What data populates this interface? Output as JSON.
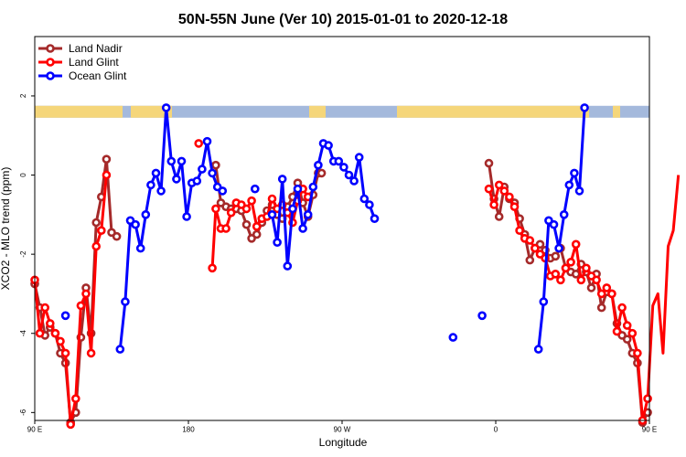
{
  "chart_data": {
    "type": "line",
    "title": "50N-55N June (Ver 10)   2015-01-01 to 2020-12-18",
    "xlabel": "Longitude",
    "ylabel": "XCO2 - MLO trend (ppm)",
    "xlim": [
      90,
      450
    ],
    "ylim": [
      -6.2,
      3.5
    ],
    "x_ticks": [
      {
        "value": 90,
        "label": "90 E"
      },
      {
        "value": 180,
        "label": "180"
      },
      {
        "value": 270,
        "label": "90 W"
      },
      {
        "value": 360,
        "label": "0"
      },
      {
        "value": 450,
        "label": "90 E"
      },
      {
        "value": 540,
        "label": "180"
      }
    ],
    "y_ticks": [
      -6,
      -4,
      -2,
      0,
      2
    ],
    "land_ocean_band": {
      "y_range": [
        1.45,
        1.75
      ],
      "land_color": "#f5d67a",
      "ocean_color": "#a4b9dc"
    },
    "legend": {
      "position": "top-left"
    },
    "series": [
      {
        "name": "Land Nadir",
        "color": "#a52a2a",
        "points": [
          [
            90,
            -2.75
          ],
          [
            93,
            -3.35
          ],
          [
            96,
            -4.05
          ],
          [
            99,
            -3.85
          ],
          [
            102,
            -4.0
          ],
          [
            105,
            -4.5
          ],
          [
            108,
            -4.75
          ],
          [
            111,
            -6.25
          ],
          [
            114,
            -6.0
          ],
          [
            117,
            -4.1
          ],
          [
            120,
            -2.85
          ],
          [
            123,
            -4.0
          ],
          [
            126,
            -1.2
          ],
          [
            129,
            -0.55
          ],
          [
            132,
            0.4
          ],
          [
            135,
            -1.45
          ],
          [
            138,
            -1.55
          ],
          [
            196,
            0.25
          ],
          [
            199,
            -0.7
          ],
          [
            202,
            -0.8
          ],
          [
            205,
            -0.85
          ],
          [
            208,
            -0.85
          ],
          [
            211,
            -0.9
          ],
          [
            214,
            -1.25
          ],
          [
            217,
            -1.6
          ],
          [
            220,
            -1.5
          ],
          [
            223,
            -1.2
          ],
          [
            226,
            -0.9
          ],
          [
            229,
            -0.75
          ],
          [
            232,
            -1.0
          ],
          [
            235,
            -1.1
          ],
          [
            238,
            -0.8
          ],
          [
            241,
            -0.55
          ],
          [
            244,
            -0.2
          ],
          [
            247,
            -0.7
          ],
          [
            250,
            -1.05
          ],
          [
            253,
            -0.5
          ],
          [
            256,
            0.05
          ],
          [
            258,
            0.05
          ],
          [
            356,
            0.3
          ],
          [
            359,
            -0.6
          ],
          [
            362,
            -1.05
          ],
          [
            365,
            -0.3
          ],
          [
            368,
            -0.6
          ],
          [
            371,
            -0.7
          ],
          [
            374,
            -1.1
          ],
          [
            377,
            -1.5
          ],
          [
            380,
            -2.15
          ],
          [
            383,
            -1.85
          ],
          [
            386,
            -1.75
          ],
          [
            389,
            -1.9
          ],
          [
            392,
            -2.1
          ],
          [
            395,
            -2.05
          ],
          [
            398,
            -1.85
          ],
          [
            401,
            -2.35
          ],
          [
            404,
            -2.45
          ],
          [
            407,
            -2.5
          ],
          [
            410,
            -2.25
          ],
          [
            413,
            -2.45
          ],
          [
            416,
            -2.85
          ],
          [
            419,
            -2.5
          ],
          [
            422,
            -3.35
          ],
          [
            425,
            -2.95
          ],
          [
            428,
            -3.0
          ],
          [
            431,
            -3.75
          ],
          [
            434,
            -4.05
          ],
          [
            437,
            -4.15
          ],
          [
            440,
            -4.5
          ],
          [
            443,
            -4.75
          ],
          [
            446,
            -6.25
          ],
          [
            449,
            -6.0
          ]
        ]
      },
      {
        "name": "Land Glint",
        "color": "#ff0000",
        "points": [
          [
            90,
            -2.65
          ],
          [
            93,
            -4.0
          ],
          [
            96,
            -3.35
          ],
          [
            99,
            -3.75
          ],
          [
            102,
            -4.0
          ],
          [
            105,
            -4.2
          ],
          [
            108,
            -4.5
          ],
          [
            111,
            -6.3
          ],
          [
            114,
            -5.65
          ],
          [
            117,
            -3.3
          ],
          [
            120,
            -3.0
          ],
          [
            123,
            -4.5
          ],
          [
            126,
            -1.8
          ],
          [
            129,
            -1.4
          ],
          [
            132,
            0.0
          ],
          [
            186,
            0.8
          ],
          [
            194,
            -2.35
          ],
          [
            196,
            -0.85
          ],
          [
            199,
            -1.35
          ],
          [
            202,
            -1.35
          ],
          [
            205,
            -0.95
          ],
          [
            208,
            -0.7
          ],
          [
            211,
            -0.75
          ],
          [
            214,
            -0.85
          ],
          [
            217,
            -0.65
          ],
          [
            220,
            -1.3
          ],
          [
            223,
            -1.1
          ],
          [
            226,
            -1.05
          ],
          [
            229,
            -0.6
          ],
          [
            232,
            -0.85
          ],
          [
            235,
            -0.75
          ],
          [
            238,
            -0.95
          ],
          [
            241,
            -1.2
          ],
          [
            244,
            -0.65
          ],
          [
            247,
            -0.35
          ],
          [
            250,
            -0.55
          ],
          [
            356,
            -0.35
          ],
          [
            359,
            -0.75
          ],
          [
            362,
            -0.25
          ],
          [
            365,
            -0.4
          ],
          [
            368,
            -0.55
          ],
          [
            371,
            -0.8
          ],
          [
            374,
            -1.4
          ],
          [
            377,
            -1.6
          ],
          [
            380,
            -1.65
          ],
          [
            383,
            -1.85
          ],
          [
            386,
            -2.0
          ],
          [
            389,
            -2.1
          ],
          [
            392,
            -2.55
          ],
          [
            395,
            -2.5
          ],
          [
            398,
            -2.65
          ],
          [
            401,
            -2.35
          ],
          [
            404,
            -2.2
          ],
          [
            407,
            -1.75
          ],
          [
            410,
            -2.65
          ],
          [
            413,
            -2.35
          ],
          [
            416,
            -2.55
          ],
          [
            419,
            -2.65
          ],
          [
            422,
            -3.0
          ],
          [
            425,
            -2.85
          ],
          [
            428,
            -3.0
          ],
          [
            431,
            -3.95
          ],
          [
            434,
            -3.35
          ],
          [
            437,
            -3.8
          ],
          [
            440,
            -4.0
          ],
          [
            443,
            -4.5
          ],
          [
            446,
            -6.2
          ],
          [
            449,
            -5.65
          ],
          [
            452,
            -3.3
          ],
          [
            455,
            -3.0
          ],
          [
            458,
            -4.5
          ],
          [
            461,
            -1.8
          ],
          [
            464,
            -1.4
          ],
          [
            467,
            0.0
          ]
        ]
      },
      {
        "name": "Ocean Glint",
        "color": "#0000ff",
        "points": [
          [
            108,
            -3.55
          ],
          [
            140,
            -4.4
          ],
          [
            143,
            -3.2
          ],
          [
            146,
            -1.15
          ],
          [
            149,
            -1.25
          ],
          [
            152,
            -1.85
          ],
          [
            155,
            -1.0
          ],
          [
            158,
            -0.25
          ],
          [
            161,
            0.05
          ],
          [
            164,
            -0.4
          ],
          [
            167,
            1.7
          ],
          [
            170,
            0.35
          ],
          [
            173,
            -0.1
          ],
          [
            176,
            0.35
          ],
          [
            179,
            -1.05
          ],
          [
            182,
            -0.2
          ],
          [
            185,
            -0.15
          ],
          [
            188,
            0.15
          ],
          [
            191,
            0.85
          ],
          [
            194,
            0.05
          ],
          [
            197,
            -0.3
          ],
          [
            200,
            -0.4
          ],
          [
            219,
            -0.35
          ],
          [
            229,
            -1.0
          ],
          [
            232,
            -1.7
          ],
          [
            235,
            -0.1
          ],
          [
            238,
            -2.3
          ],
          [
            241,
            -0.85
          ],
          [
            244,
            -0.35
          ],
          [
            247,
            -1.35
          ],
          [
            250,
            -1.0
          ],
          [
            253,
            -0.3
          ],
          [
            256,
            0.25
          ],
          [
            259,
            0.8
          ],
          [
            262,
            0.75
          ],
          [
            265,
            0.35
          ],
          [
            268,
            0.35
          ],
          [
            271,
            0.2
          ],
          [
            274,
            0.0
          ],
          [
            277,
            -0.15
          ],
          [
            280,
            0.45
          ],
          [
            283,
            -0.6
          ],
          [
            286,
            -0.75
          ],
          [
            289,
            -1.1
          ],
          [
            335,
            -4.1
          ],
          [
            352,
            -3.55
          ],
          [
            385,
            -4.4
          ],
          [
            388,
            -3.2
          ],
          [
            391,
            -1.15
          ],
          [
            394,
            -1.25
          ],
          [
            397,
            -1.85
          ],
          [
            400,
            -1.0
          ],
          [
            403,
            -0.25
          ],
          [
            406,
            0.05
          ],
          [
            409,
            -0.4
          ],
          [
            412,
            1.7
          ]
        ]
      }
    ]
  }
}
